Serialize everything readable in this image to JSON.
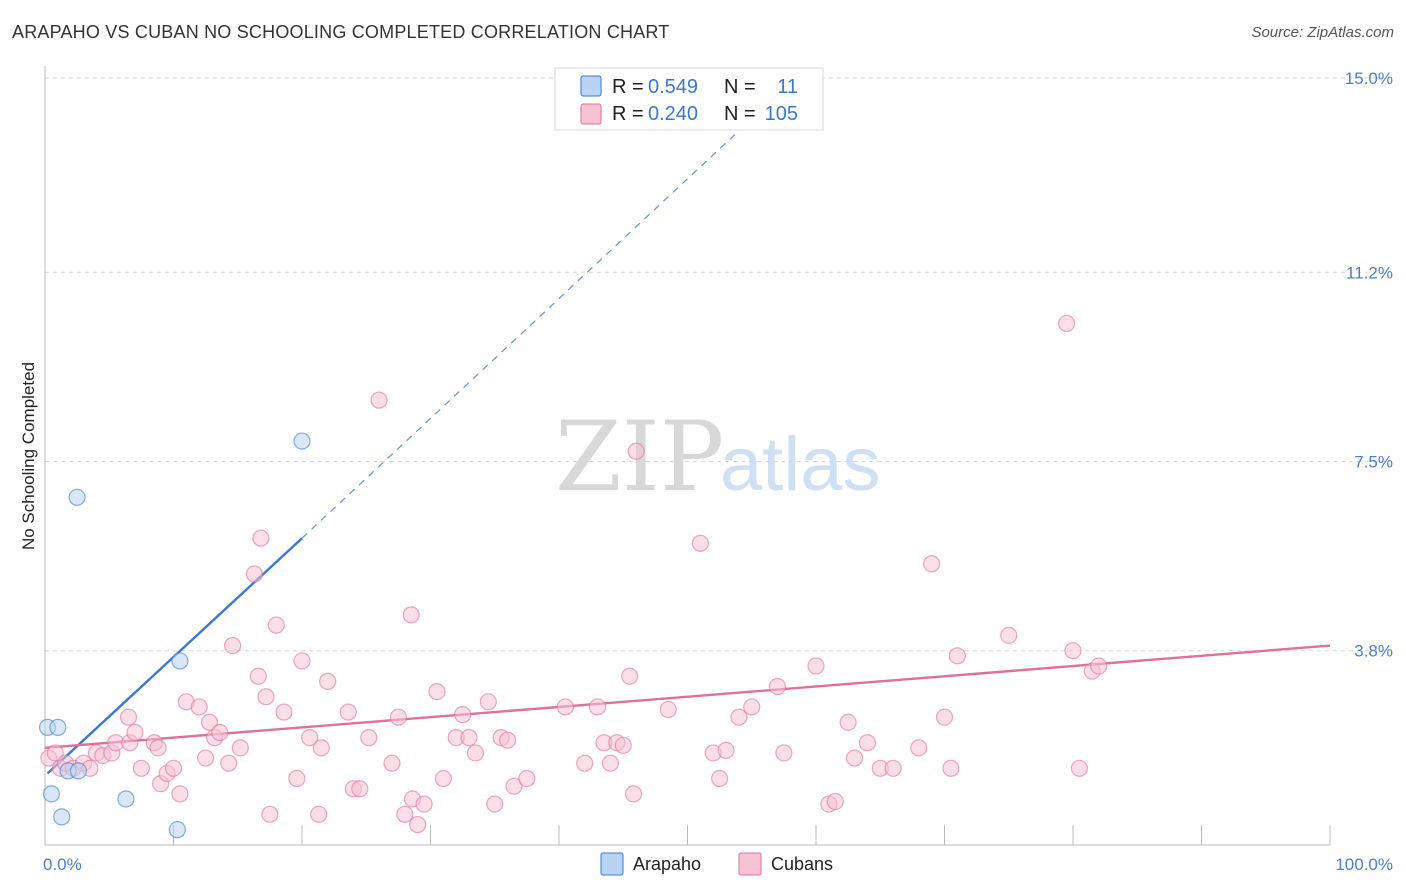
{
  "title": "ARAPAHO VS CUBAN NO SCHOOLING COMPLETED CORRELATION CHART",
  "source": "Source: ZipAtlas.com",
  "watermark": {
    "zip": "ZIP",
    "atlas": "atlas"
  },
  "colors": {
    "arapaho": "#3a78d0",
    "arapaho_fill": "#b9d3f3",
    "cubans": "#e0709a",
    "cubans_fill": "#f7c3d2",
    "grid": "#d6d6d6",
    "tick_label": "#4a7fd0"
  },
  "legend": {
    "rows": [
      {
        "r_label": "R =",
        "r_value": "0.549",
        "n_label": "N =",
        "n_value": "11"
      },
      {
        "r_label": "R =",
        "r_value": "0.240",
        "n_label": "N =",
        "n_value": "105"
      }
    ]
  },
  "chart_data": {
    "type": "scatter",
    "title": "ARAPAHO VS CUBAN NO SCHOOLING COMPLETED CORRELATION CHART",
    "xlabel": "",
    "ylabel": "No Schooling Completed",
    "xlim": [
      0,
      100
    ],
    "ylim": [
      0,
      15.0
    ],
    "x_tick_labels": [
      {
        "value": 0,
        "label": "0.0%"
      },
      {
        "value": 100,
        "label": "100.0%"
      }
    ],
    "y_tick_labels": [
      {
        "value": 3.8,
        "label": "3.8%"
      },
      {
        "value": 7.5,
        "label": "7.5%"
      },
      {
        "value": 11.2,
        "label": "11.2%"
      },
      {
        "value": 15.0,
        "label": "15.0%"
      }
    ],
    "y_gridlines": [
      3.8,
      7.5,
      11.2,
      15.0
    ],
    "x_ticks": [
      0,
      10,
      20,
      30,
      40,
      50,
      60,
      70,
      80,
      90,
      100
    ],
    "series": [
      {
        "name": "Arapaho",
        "color": "#3a78d0",
        "fill": "#b9d3f3",
        "r": 0.549,
        "n": 11,
        "points": [
          [
            0.2,
            2.3
          ],
          [
            1.0,
            2.3
          ],
          [
            0.5,
            1.0
          ],
          [
            1.3,
            0.55
          ],
          [
            1.8,
            1.45
          ],
          [
            2.6,
            1.45
          ],
          [
            2.5,
            6.8
          ],
          [
            6.3,
            0.9
          ],
          [
            10.3,
            0.3
          ],
          [
            10.5,
            3.6
          ],
          [
            20.0,
            7.9
          ]
        ],
        "trend_solid": [
          [
            0.2,
            1.4
          ],
          [
            20.0,
            6.0
          ]
        ],
        "trend_dashed": [
          [
            20.0,
            6.0
          ],
          [
            55.0,
            14.2
          ]
        ]
      },
      {
        "name": "Cubans",
        "color": "#e0709a",
        "fill": "#f7c3d2",
        "r": 0.24,
        "n": 105,
        "points": [
          [
            0.3,
            1.7
          ],
          [
            0.8,
            1.8
          ],
          [
            1.2,
            1.5
          ],
          [
            1.6,
            1.6
          ],
          [
            2.2,
            1.5
          ],
          [
            3.0,
            1.6
          ],
          [
            3.5,
            1.5
          ],
          [
            4.0,
            1.8
          ],
          [
            4.5,
            1.75
          ],
          [
            5.2,
            1.8
          ],
          [
            5.5,
            2.0
          ],
          [
            6.5,
            2.5
          ],
          [
            6.6,
            2.0
          ],
          [
            7.0,
            2.2
          ],
          [
            7.5,
            1.5
          ],
          [
            8.5,
            2.0
          ],
          [
            8.8,
            1.9
          ],
          [
            9.0,
            1.2
          ],
          [
            9.5,
            1.4
          ],
          [
            10.0,
            1.5
          ],
          [
            10.5,
            1.0
          ],
          [
            11.0,
            2.8
          ],
          [
            12.0,
            2.7
          ],
          [
            12.5,
            1.7
          ],
          [
            12.8,
            2.4
          ],
          [
            13.2,
            2.1
          ],
          [
            13.6,
            2.2
          ],
          [
            14.3,
            1.6
          ],
          [
            14.6,
            3.9
          ],
          [
            15.2,
            1.9
          ],
          [
            16.3,
            5.3
          ],
          [
            16.6,
            3.3
          ],
          [
            16.8,
            6.0
          ],
          [
            17.2,
            2.9
          ],
          [
            17.5,
            0.6
          ],
          [
            18.0,
            4.3
          ],
          [
            18.6,
            2.6
          ],
          [
            19.6,
            1.3
          ],
          [
            20.0,
            3.6
          ],
          [
            20.6,
            2.1
          ],
          [
            21.3,
            0.6
          ],
          [
            21.5,
            1.9
          ],
          [
            22.0,
            3.2
          ],
          [
            23.6,
            2.6
          ],
          [
            24.0,
            1.1
          ],
          [
            24.5,
            1.1
          ],
          [
            25.2,
            2.1
          ],
          [
            26.0,
            8.7
          ],
          [
            27.0,
            1.6
          ],
          [
            27.5,
            2.5
          ],
          [
            28.0,
            0.6
          ],
          [
            28.5,
            4.5
          ],
          [
            28.6,
            0.9
          ],
          [
            29.0,
            0.4
          ],
          [
            29.5,
            0.8
          ],
          [
            30.5,
            3.0
          ],
          [
            31.0,
            1.3
          ],
          [
            32.0,
            2.1
          ],
          [
            32.5,
            2.55
          ],
          [
            33.0,
            2.1
          ],
          [
            33.5,
            1.8
          ],
          [
            34.5,
            2.8
          ],
          [
            35.0,
            0.8
          ],
          [
            35.5,
            2.1
          ],
          [
            36.0,
            2.05
          ],
          [
            36.5,
            1.15
          ],
          [
            37.5,
            1.3
          ],
          [
            40.5,
            2.7
          ],
          [
            42.0,
            1.6
          ],
          [
            43.0,
            2.7
          ],
          [
            43.5,
            2.0
          ],
          [
            44.0,
            1.6
          ],
          [
            44.5,
            2.0
          ],
          [
            45.0,
            1.95
          ],
          [
            45.5,
            3.3
          ],
          [
            45.8,
            1.0
          ],
          [
            46.0,
            7.7
          ],
          [
            48.5,
            2.65
          ],
          [
            51.0,
            5.9
          ],
          [
            52.0,
            1.8
          ],
          [
            52.5,
            1.3
          ],
          [
            53.0,
            1.85
          ],
          [
            54.0,
            2.5
          ],
          [
            55.0,
            2.7
          ],
          [
            57.0,
            3.1
          ],
          [
            57.5,
            1.8
          ],
          [
            60.0,
            3.5
          ],
          [
            61.0,
            0.8
          ],
          [
            61.5,
            0.85
          ],
          [
            62.5,
            2.4
          ],
          [
            63.0,
            1.7
          ],
          [
            64.0,
            2.0
          ],
          [
            65.0,
            1.5
          ],
          [
            66.0,
            1.5
          ],
          [
            68.0,
            1.9
          ],
          [
            69.0,
            5.5
          ],
          [
            70.0,
            2.5
          ],
          [
            70.5,
            1.5
          ],
          [
            71.0,
            3.7
          ],
          [
            75.0,
            4.1
          ],
          [
            79.5,
            10.2
          ],
          [
            80.0,
            3.8
          ],
          [
            80.5,
            1.5
          ],
          [
            81.5,
            3.4
          ],
          [
            82.0,
            3.5
          ]
        ],
        "trend_solid": [
          [
            0,
            1.9
          ],
          [
            100,
            3.9
          ]
        ]
      }
    ]
  }
}
